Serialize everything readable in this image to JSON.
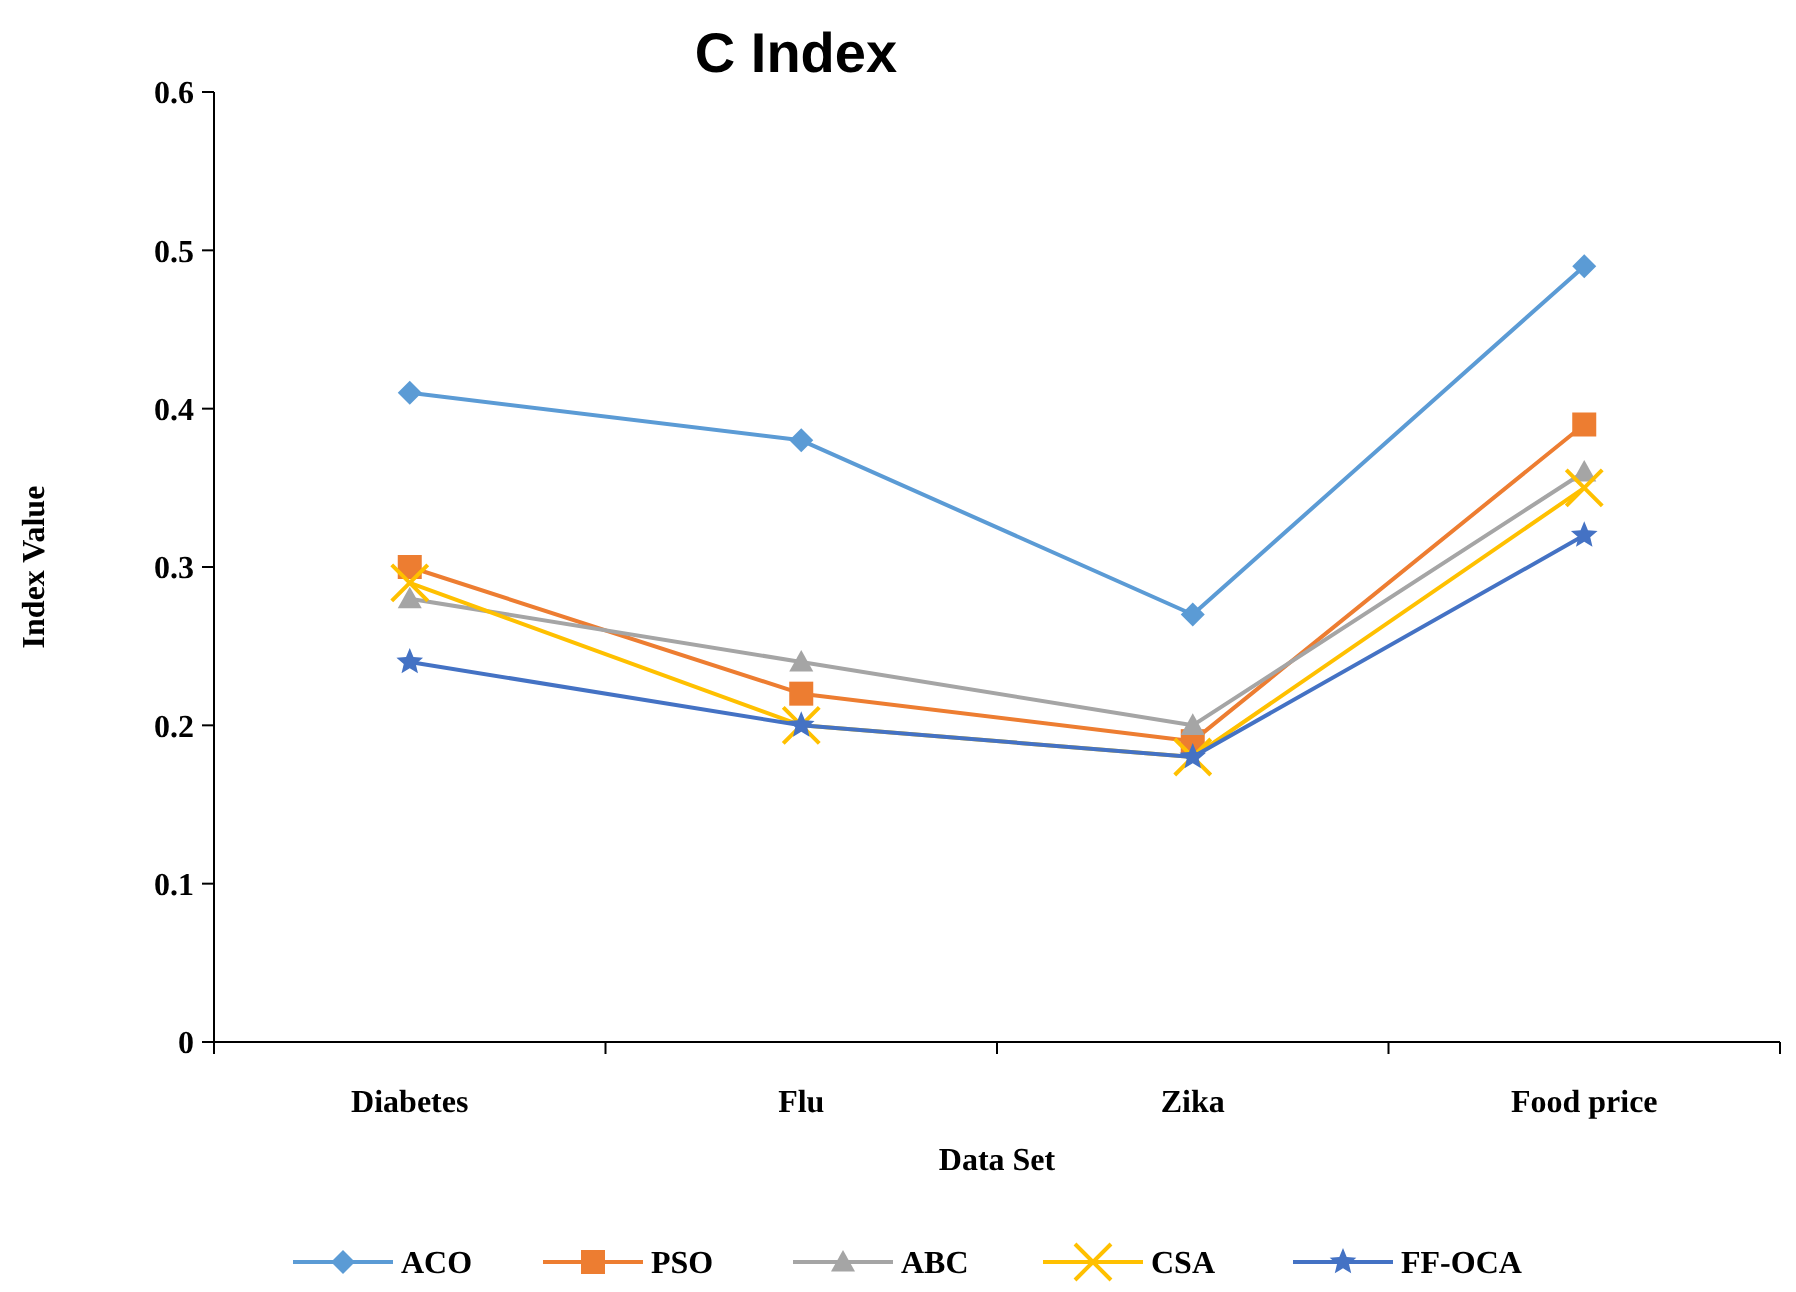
{
  "chart_data": {
    "type": "line",
    "title": "C Index",
    "xlabel": "Data Set",
    "ylabel": "Index Value",
    "categories": [
      "Diabetes",
      "Flu",
      "Zika",
      "Food price"
    ],
    "series": [
      {
        "name": "ACO",
        "color": "#5b9bd5",
        "marker": "diamond",
        "values": [
          0.41,
          0.38,
          0.27,
          0.49
        ]
      },
      {
        "name": "PSO",
        "color": "#ed7d31",
        "marker": "square",
        "values": [
          0.3,
          0.22,
          0.19,
          0.39
        ]
      },
      {
        "name": "ABC",
        "color": "#a5a5a5",
        "marker": "triangle",
        "values": [
          0.28,
          0.24,
          0.2,
          0.36
        ]
      },
      {
        "name": "CSA",
        "color": "#ffc000",
        "marker": "cross",
        "values": [
          0.29,
          0.2,
          0.18,
          0.35
        ]
      },
      {
        "name": "FF-OCA",
        "color": "#4472c4",
        "marker": "star",
        "values": [
          0.24,
          0.2,
          0.18,
          0.32
        ]
      }
    ],
    "ylim": [
      0,
      0.6
    ],
    "yticks": [
      0,
      {
        "value": 0.1,
        "label": "0.1"
      },
      {
        "value": 0.2,
        "label": "0.2"
      },
      {
        "value": 0.3,
        "label": "0.3"
      },
      {
        "value": 0.4,
        "label": "0.4"
      },
      {
        "value": 0.5,
        "label": "0.5"
      },
      {
        "value": 0.6,
        "label": "0.6"
      }
    ],
    "grid": false,
    "legend": "bottom"
  }
}
